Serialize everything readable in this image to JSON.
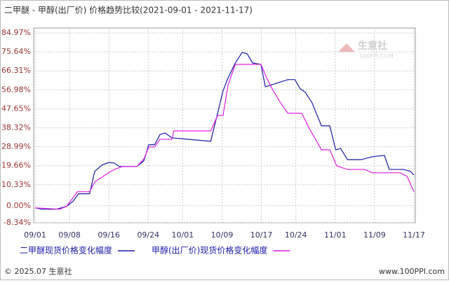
{
  "chart_data": {
    "type": "line",
    "title": "二甲醚 - 甲醇(出厂价) 价格趋势比较(2021-09-01 - 2021-11-17)",
    "watermark": "生意社",
    "watermark_sub": "100PPI.COM",
    "footer_left": "© 2025.07 生意社",
    "footer_right": "www.100PPI.com",
    "xlim": [
      0,
      77
    ],
    "xticks": [
      {
        "value": 0,
        "label": "09/01"
      },
      {
        "value": 7,
        "label": "09/08"
      },
      {
        "value": 15,
        "label": "09/16"
      },
      {
        "value": 23,
        "label": "09/24"
      },
      {
        "value": 30,
        "label": "10/01"
      },
      {
        "value": 38,
        "label": "10/09"
      },
      {
        "value": 46,
        "label": "10/17"
      },
      {
        "value": 53,
        "label": "10/24"
      },
      {
        "value": 61,
        "label": "11/01"
      },
      {
        "value": 69,
        "label": "11/09"
      },
      {
        "value": 77,
        "label": "11/17"
      }
    ],
    "ylim": [
      -8.34,
      84.97
    ],
    "yticks": [
      {
        "value": 84.97,
        "label": "84.97%"
      },
      {
        "value": 75.64,
        "label": "75.64%"
      },
      {
        "value": 66.31,
        "label": "66.31%"
      },
      {
        "value": 56.98,
        "label": "56.98%"
      },
      {
        "value": 47.65,
        "label": "47.65%"
      },
      {
        "value": 38.32,
        "label": "38.32%"
      },
      {
        "value": 28.99,
        "label": "28.99%"
      },
      {
        "value": 19.66,
        "label": "19.66%"
      },
      {
        "value": 10.33,
        "label": "10.33%"
      },
      {
        "value": 0,
        "label": "0.00%"
      },
      {
        "value": -8.34,
        "label": "-8.34%"
      }
    ],
    "grid": true,
    "series": [
      {
        "name": "二甲醚现货价格变化幅度",
        "color": "#1a1aa8",
        "x": [
          0,
          1.4,
          4.3,
          6.4,
          7.8,
          8.8,
          11.1,
          12.1,
          13.6,
          15.0,
          16.1,
          17.1,
          20.7,
          22.1,
          23.1,
          24.3,
          25.4,
          26.4,
          27.8,
          35.7,
          37.1,
          38.2,
          39.2,
          40.7,
          42.1,
          43.1,
          44.2,
          45.9,
          46.8,
          47.8,
          49.9,
          51.4,
          52.8,
          53.9,
          54.9,
          56.3,
          58.2,
          59.9,
          61.1,
          62.1,
          63.5,
          66.3,
          68.5,
          71.0,
          72.0,
          74.9,
          76.3,
          77
        ],
        "values": [
          -1,
          -1.7,
          -1.7,
          -0.3,
          2.4,
          5.9,
          5.9,
          16.9,
          20,
          21.3,
          21,
          19.3,
          19.3,
          22.1,
          30,
          30,
          35,
          35.8,
          33.4,
          31.7,
          45.5,
          56.5,
          62.7,
          70.2,
          75.4,
          74.7,
          70.2,
          69.5,
          58.5,
          59.2,
          60.9,
          62,
          62,
          57.5,
          55.8,
          50.6,
          39.3,
          39.3,
          27.5,
          28.2,
          22.7,
          22.7,
          24.1,
          24.8,
          17.9,
          17.9,
          16.9,
          15.1
        ]
      },
      {
        "name": "甲醇(出厂价)现货价格变化幅度",
        "color": "#e020e0",
        "x": [
          0,
          5.0,
          6.4,
          8.6,
          11.1,
          12.1,
          14.3,
          16.1,
          17.8,
          20.7,
          22.1,
          23.1,
          24.3,
          25.4,
          27.8,
          28.2,
          35.7,
          37.1,
          38.2,
          39.2,
          40.7,
          42.1,
          45.9,
          47.1,
          48.2,
          49.9,
          51.4,
          54.2,
          55.6,
          58.2,
          59.9,
          61.3,
          63.5,
          67.0,
          68.5,
          74.2,
          75.6,
          77
        ],
        "values": [
          -1,
          -1.7,
          -0.3,
          6.9,
          6.9,
          11.7,
          15.2,
          17.9,
          19.3,
          19.3,
          23,
          28.9,
          28.9,
          32.7,
          32.7,
          36.8,
          36.8,
          44.4,
          44.4,
          59.2,
          69.5,
          69.5,
          69.5,
          62.7,
          57.5,
          50.6,
          45.5,
          45.5,
          38.6,
          27.5,
          27.5,
          19.6,
          17.9,
          17.9,
          16.2,
          16.2,
          14.5,
          6.9
        ]
      }
    ]
  }
}
